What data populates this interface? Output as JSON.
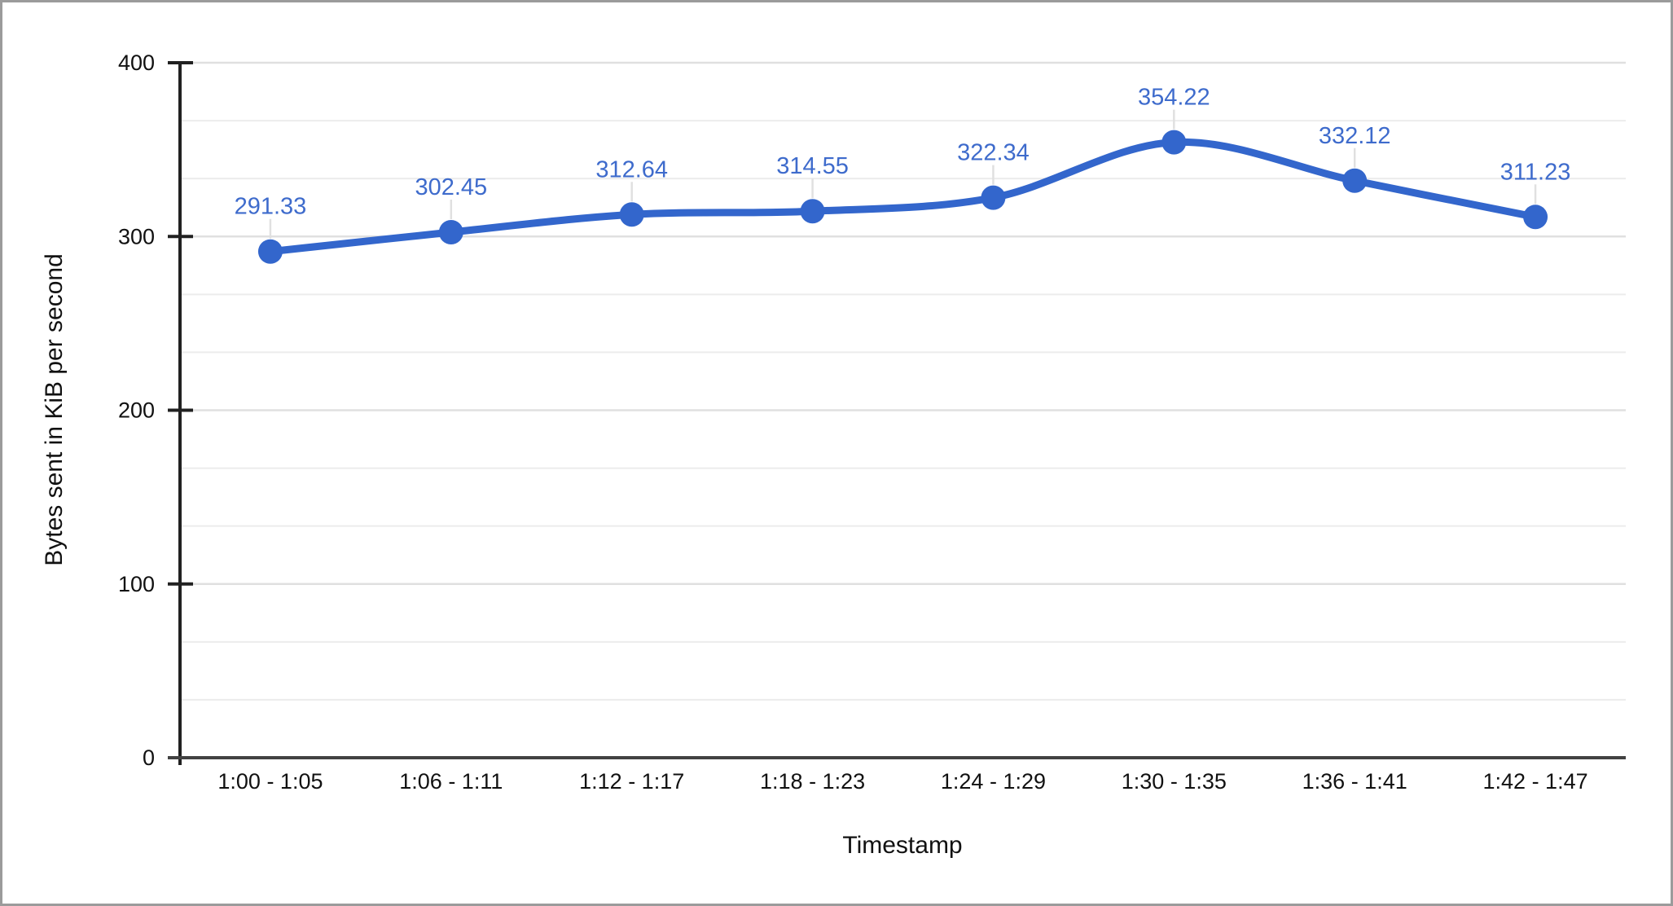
{
  "page": {
    "background": "#FFFFFF",
    "border_color": "#9B9B9B"
  },
  "chart_data": {
    "type": "line",
    "title": "",
    "xlabel": "Timestamp",
    "ylabel": "Bytes sent in KiB per second",
    "categories": [
      "1:00 - 1:05",
      "1:06 - 1:11",
      "1:12 - 1:17",
      "1:18 - 1:23",
      "1:24 - 1:29",
      "1:30 - 1:35",
      "1:36 - 1:41",
      "1:42 - 1:47"
    ],
    "values": [
      291.33,
      302.45,
      312.64,
      314.55,
      322.34,
      354.22,
      332.12,
      311.23
    ],
    "data_labels": [
      "291.33",
      "302.45",
      "312.64",
      "314.55",
      "322.34",
      "354.22",
      "332.12",
      "311.23"
    ],
    "ylim": [
      0,
      400
    ],
    "y_ticks": [
      0,
      100,
      200,
      300,
      400
    ],
    "minor_gridlines_between_majors": 2,
    "grid": true,
    "legend": "none",
    "line_smooth": true,
    "colors": {
      "series": "#3366CC",
      "data_label_text": "#3E6BCC",
      "gridline_major": "#E0E0E0",
      "gridline_minor": "#ECECEC",
      "axis_line": "#212121",
      "baseline": "#424242",
      "tick_label": "#111111",
      "label_connector": "#E0E0E0"
    }
  }
}
